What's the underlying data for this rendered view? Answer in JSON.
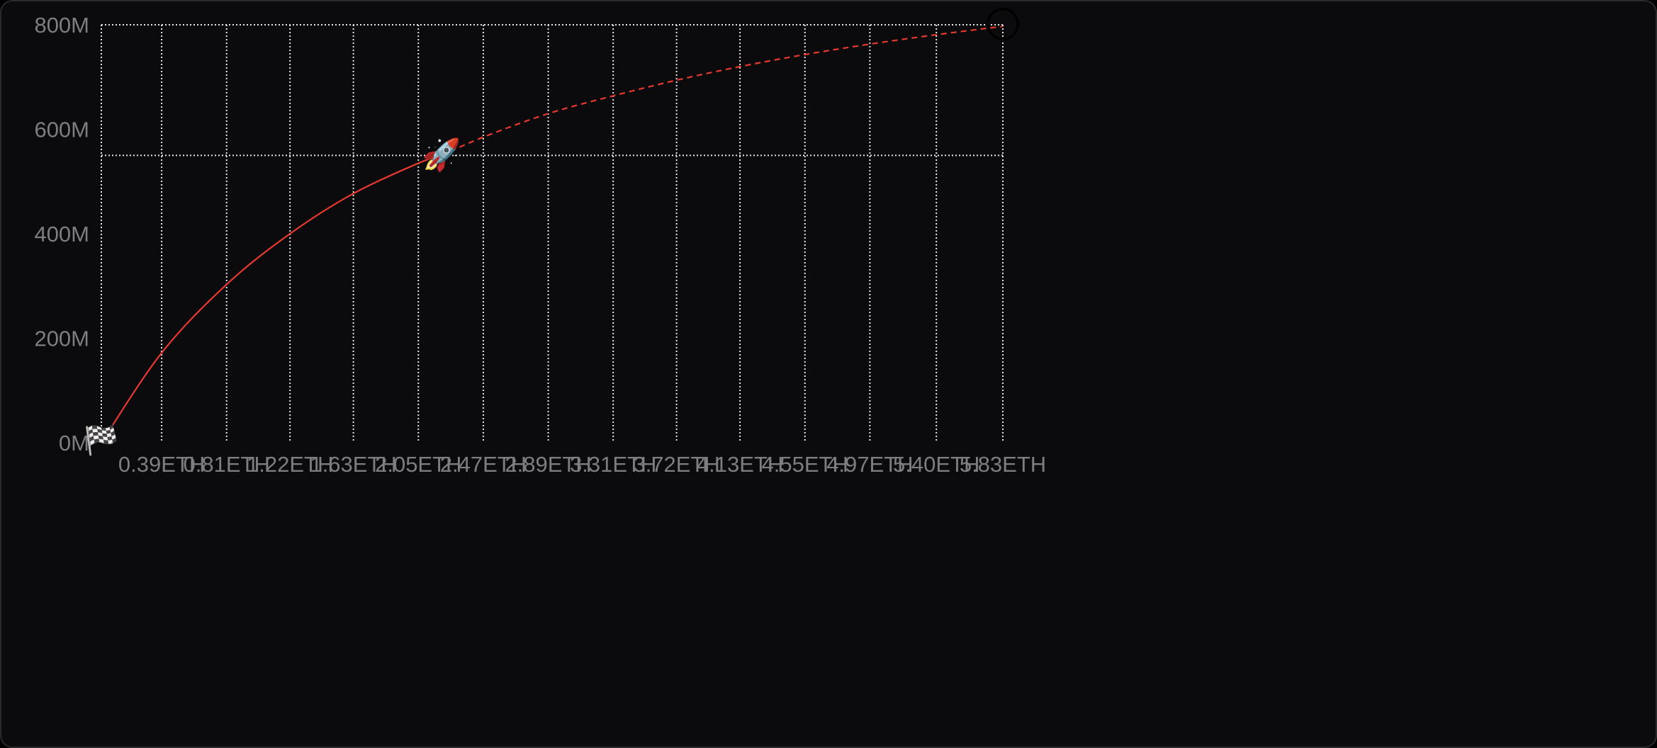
{
  "chart_data": {
    "type": "line",
    "title": "",
    "xlabel": "",
    "ylabel": "",
    "x_unit": "ETH",
    "y_ticks": [
      "0M",
      "200M",
      "400M",
      "600M",
      "800M"
    ],
    "x_ticks": [
      "0.39ETH",
      "0.81ETH",
      "1.22ETH",
      "1.63ETH",
      "2.05ETH",
      "2.47ETH",
      "2.89ETH",
      "3.31ETH",
      "3.72ETH",
      "4.13ETH",
      "4.55ETH",
      "4.97ETH",
      "5.40ETH",
      "5.83ETH"
    ],
    "x_tick_values": [
      0.39,
      0.81,
      1.22,
      1.63,
      2.05,
      2.47,
      2.89,
      3.31,
      3.72,
      4.13,
      4.55,
      4.97,
      5.4,
      5.83
    ],
    "xlim": [
      0,
      5.83
    ],
    "ylim": [
      0,
      800
    ],
    "grid": true,
    "current_marker_level": 550,
    "series": [
      {
        "style": "solid",
        "color": "#e8392f",
        "x": [
          0,
          0.39,
          0.81,
          1.22,
          1.63,
          2.05,
          2.2
        ],
        "y": [
          0,
          172,
          303,
          400,
          477,
          535,
          550
        ]
      },
      {
        "style": "dashed",
        "color": "#e8392f",
        "x": [
          2.2,
          2.47,
          2.89,
          3.31,
          3.72,
          4.13,
          4.55,
          4.97,
          5.4,
          5.83
        ],
        "y": [
          550,
          585,
          630,
          664,
          694,
          720,
          743,
          763,
          781,
          797
        ]
      }
    ],
    "markers": [
      {
        "name": "start-flag-icon",
        "glyph": "🏁",
        "x": 0,
        "y": 0
      },
      {
        "name": "rocket-icon",
        "glyph": "🚀",
        "x": 2.2,
        "y": 550
      },
      {
        "name": "moon-icon",
        "glyph": "🌕",
        "x": 5.83,
        "y": 800
      }
    ]
  }
}
